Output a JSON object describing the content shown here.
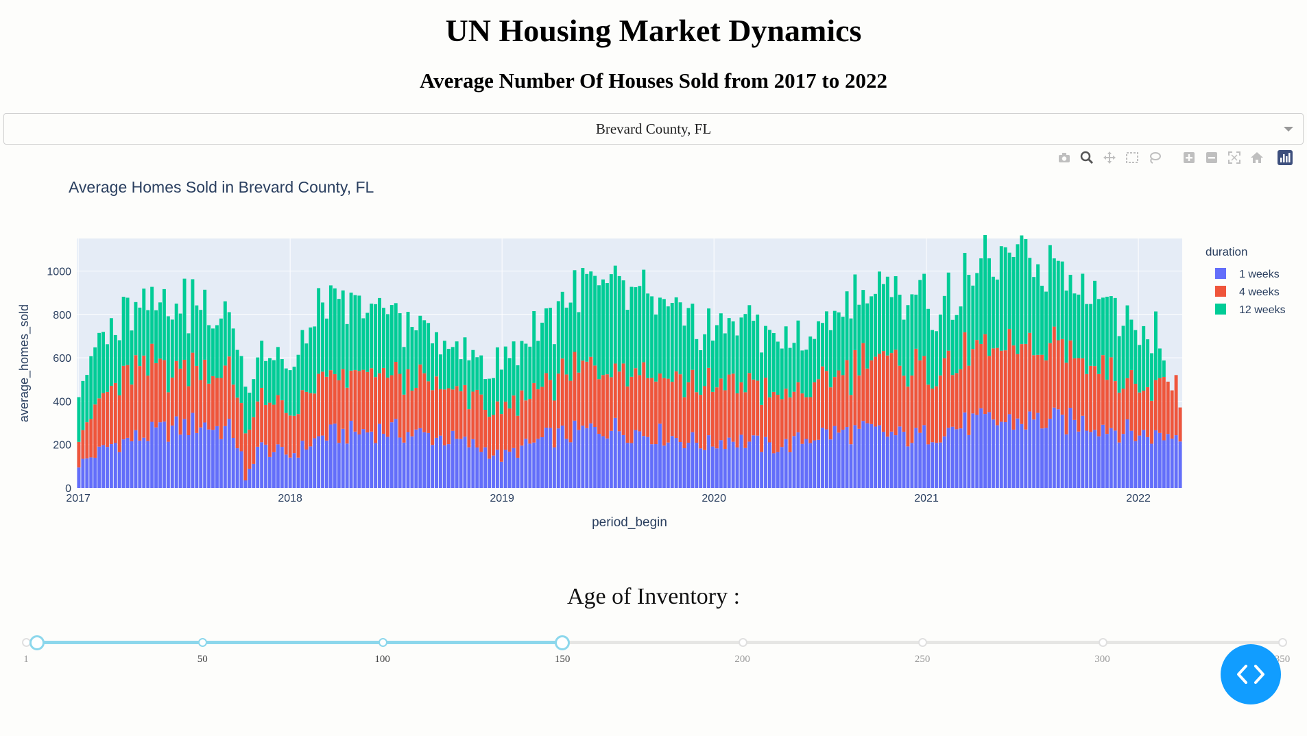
{
  "header": {
    "title": "UN Housing Market Dynamics",
    "subtitle": "Average Number Of Houses Sold from 2017 to 2022"
  },
  "dropdown": {
    "selected": "Brevard County, FL"
  },
  "modebar": {
    "buttons": [
      "camera-icon",
      "zoom-icon",
      "pan-icon",
      "box-select-icon",
      "lasso-icon",
      "zoom-in-icon",
      "zoom-out-icon",
      "autoscale-icon",
      "reset-axes-icon",
      "plotly-logo-icon"
    ],
    "active": "zoom-icon"
  },
  "chart_data": {
    "type": "bar",
    "stacked": true,
    "title": "Average Homes Sold in Brevard County, FL",
    "xlabel": "period_begin",
    "ylabel": "average_homes_sold",
    "x_ticks": [
      "2017",
      "2018",
      "2019",
      "2020",
      "2021",
      "2022"
    ],
    "y_ticks": [
      "0",
      "200",
      "400",
      "600",
      "800",
      "1000"
    ],
    "xlim": [
      "2017-01-02",
      "2022-03-14"
    ],
    "ylim": [
      0,
      1150
    ],
    "legend_title": "duration",
    "legend_position": "top-right",
    "grid": true,
    "period": "weekly",
    "start": "2017-01-02",
    "series": [
      {
        "name": "1 weeks",
        "color": "#636efa",
        "anchors": [
          [
            0,
            110
          ],
          [
            8,
            200
          ],
          [
            20,
            260
          ],
          [
            30,
            300
          ],
          [
            33,
            280
          ],
          [
            38,
            260
          ],
          [
            40,
            150
          ],
          [
            41,
            30
          ],
          [
            44,
            190
          ],
          [
            52,
            150
          ],
          [
            60,
            240
          ],
          [
            75,
            270
          ],
          [
            90,
            230
          ],
          [
            100,
            180
          ],
          [
            104,
            140
          ],
          [
            115,
            230
          ],
          [
            130,
            280
          ],
          [
            145,
            240
          ],
          [
            155,
            200
          ],
          [
            160,
            230
          ],
          [
            170,
            190
          ],
          [
            175,
            200
          ],
          [
            182,
            250
          ],
          [
            195,
            260
          ],
          [
            205,
            230
          ],
          [
            220,
            300
          ],
          [
            235,
            310
          ],
          [
            250,
            300
          ],
          [
            260,
            250
          ],
          [
            265,
            240
          ],
          [
            270,
            250
          ],
          [
            272,
            260
          ],
          [
            275,
            240
          ]
        ]
      },
      {
        "name": "4 weeks",
        "color": "#ef553b",
        "anchors": [
          [
            0,
            150
          ],
          [
            8,
            260
          ],
          [
            15,
            320
          ],
          [
            25,
            260
          ],
          [
            30,
            280
          ],
          [
            33,
            260
          ],
          [
            38,
            250
          ],
          [
            40,
            230
          ],
          [
            44,
            210
          ],
          [
            52,
            200
          ],
          [
            60,
            250
          ],
          [
            70,
            260
          ],
          [
            80,
            250
          ],
          [
            90,
            230
          ],
          [
            100,
            220
          ],
          [
            104,
            180
          ],
          [
            115,
            260
          ],
          [
            130,
            310
          ],
          [
            140,
            300
          ],
          [
            155,
            260
          ],
          [
            165,
            270
          ],
          [
            175,
            220
          ],
          [
            182,
            230
          ],
          [
            195,
            330
          ],
          [
            205,
            320
          ],
          [
            215,
            290
          ],
          [
            220,
            310
          ],
          [
            232,
            330
          ],
          [
            240,
            330
          ],
          [
            250,
            300
          ],
          [
            260,
            230
          ],
          [
            265,
            240
          ],
          [
            270,
            260
          ],
          [
            272,
            0
          ],
          [
            275,
            0
          ]
        ]
      },
      {
        "name": "12 weeks",
        "color": "#00cc96",
        "anchors": [
          [
            0,
            230
          ],
          [
            8,
            270
          ],
          [
            15,
            310
          ],
          [
            25,
            310
          ],
          [
            30,
            290
          ],
          [
            33,
            260
          ],
          [
            38,
            240
          ],
          [
            40,
            230
          ],
          [
            41,
            200
          ],
          [
            44,
            230
          ],
          [
            52,
            200
          ],
          [
            60,
            340
          ],
          [
            70,
            300
          ],
          [
            80,
            280
          ],
          [
            90,
            190
          ],
          [
            100,
            180
          ],
          [
            104,
            220
          ],
          [
            115,
            300
          ],
          [
            130,
            400
          ],
          [
            140,
            350
          ],
          [
            150,
            280
          ],
          [
            155,
            250
          ],
          [
            165,
            300
          ],
          [
            175,
            240
          ],
          [
            182,
            250
          ],
          [
            190,
            300
          ],
          [
            200,
            330
          ],
          [
            205,
            320
          ],
          [
            215,
            310
          ],
          [
            225,
            390
          ],
          [
            232,
            420
          ],
          [
            240,
            370
          ],
          [
            250,
            350
          ],
          [
            260,
            280
          ],
          [
            265,
            260
          ],
          [
            268,
            0
          ],
          [
            275,
            0
          ]
        ]
      }
    ]
  },
  "slider": {
    "title": "Age of Inventory :",
    "min": 1,
    "max": 350,
    "value": [
      4,
      150
    ],
    "marks": [
      "1",
      "50",
      "100",
      "150",
      "200",
      "250",
      "300",
      "350"
    ]
  },
  "fab": {
    "icon": "code-icon"
  }
}
